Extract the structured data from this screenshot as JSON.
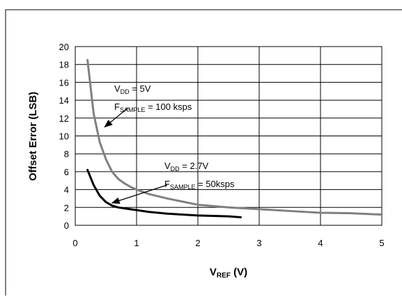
{
  "chart_data": {
    "type": "line",
    "xlabel": {
      "main": "V",
      "sub": "REF",
      "rest": " (V)"
    },
    "ylabel": "Offset Error (LSB)",
    "xlim": [
      0,
      5
    ],
    "ylim": [
      0,
      20
    ],
    "xticks": [
      0,
      1,
      2,
      3,
      4,
      5
    ],
    "yticks": [
      0,
      2,
      4,
      6,
      8,
      10,
      12,
      14,
      16,
      18,
      20
    ],
    "grid": {
      "vertical": true,
      "horizontal": true
    },
    "series": [
      {
        "color": "#808080",
        "x": [
          0.2,
          0.3,
          0.4,
          0.5,
          0.6,
          0.7,
          0.8,
          0.9,
          1.0,
          1.2,
          1.5,
          2.0,
          2.5,
          3.0,
          3.5,
          4.0,
          4.5,
          5.0
        ],
        "y": [
          18.5,
          12.5,
          9.3,
          7.4,
          6.0,
          5.2,
          4.7,
          4.3,
          4.0,
          3.5,
          3.0,
          2.3,
          2.0,
          1.8,
          1.6,
          1.4,
          1.35,
          1.2
        ]
      },
      {
        "color": "#000000",
        "x": [
          0.2,
          0.3,
          0.4,
          0.5,
          0.6,
          0.7,
          0.8,
          1.0,
          1.2,
          1.5,
          2.0,
          2.5,
          2.7
        ],
        "y": [
          6.2,
          4.5,
          3.3,
          2.6,
          2.2,
          2.0,
          1.9,
          1.7,
          1.5,
          1.3,
          1.1,
          1.0,
          0.9
        ]
      }
    ],
    "annotations": [
      {
        "lines": [
          {
            "main": "V",
            "sub": "DD",
            "rest": " = 5V"
          },
          {
            "main": "F",
            "sub": "SAMPLE",
            "rest": " = 100 ksps"
          }
        ],
        "arrow_to": [
          0.48,
          11.0
        ]
      },
      {
        "lines": [
          {
            "main": "V",
            "sub": "DD",
            "rest": " = 2.7V"
          },
          {
            "main": "F",
            "sub": "SAMPLE",
            "rest": " = 50ksps"
          }
        ],
        "arrow_to": [
          0.6,
          2.5
        ]
      }
    ]
  }
}
